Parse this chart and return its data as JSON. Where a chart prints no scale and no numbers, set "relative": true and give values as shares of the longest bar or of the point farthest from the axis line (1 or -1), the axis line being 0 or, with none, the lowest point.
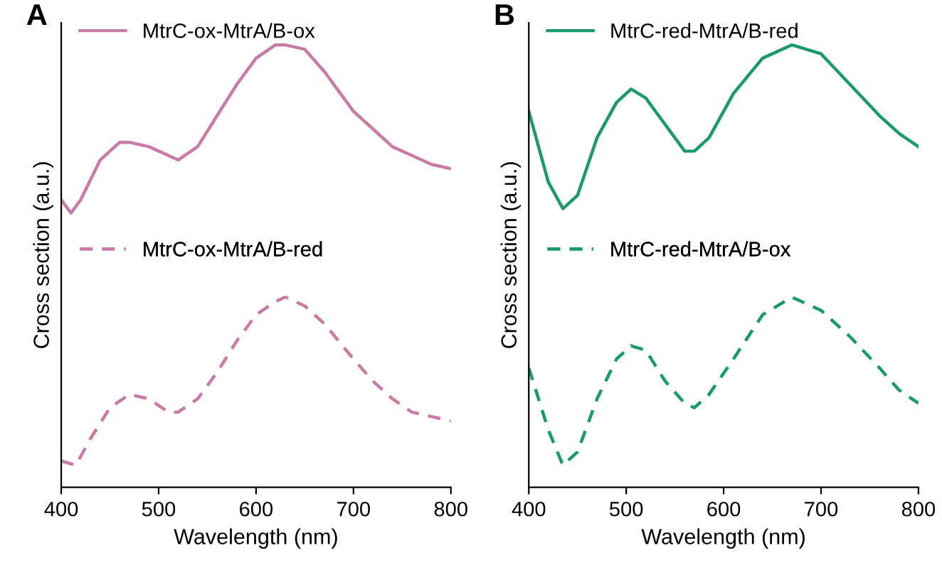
{
  "chart_data": [
    {
      "type": "line",
      "title": "A",
      "xlabel": "Wavelength (nm)",
      "ylabel": "Cross section (a.u.)",
      "relative": true,
      "xlim": [
        400,
        800
      ],
      "xticks": [
        400,
        500,
        600,
        700,
        800
      ],
      "legend": "left",
      "grid": false,
      "series": [
        {
          "name": "MtrC-ox-MtrA/B-ox",
          "color": "#c97aa5",
          "line_style": "solid",
          "x": [
            400,
            410,
            420,
            440,
            460,
            470,
            490,
            510,
            520,
            540,
            560,
            580,
            600,
            620,
            630,
            650,
            670,
            700,
            720,
            740,
            760,
            780,
            800
          ],
          "values": [
            0.65,
            0.62,
            0.65,
            0.74,
            0.78,
            0.78,
            0.77,
            0.75,
            0.74,
            0.77,
            0.84,
            0.91,
            0.97,
            1.0,
            1.0,
            0.99,
            0.94,
            0.85,
            0.81,
            0.77,
            0.75,
            0.73,
            0.72
          ]
        },
        {
          "name": "MtrC-ox-MtrA/B-red",
          "color": "#c97aa5",
          "line_style": "dashed",
          "x": [
            400,
            415,
            430,
            450,
            470,
            490,
            510,
            520,
            540,
            560,
            580,
            600,
            620,
            630,
            650,
            670,
            700,
            720,
            740,
            760,
            780,
            800
          ],
          "values": [
            0.06,
            0.05,
            0.11,
            0.18,
            0.21,
            0.2,
            0.17,
            0.17,
            0.2,
            0.26,
            0.33,
            0.39,
            0.42,
            0.43,
            0.41,
            0.37,
            0.29,
            0.24,
            0.2,
            0.17,
            0.16,
            0.15
          ]
        }
      ]
    },
    {
      "type": "line",
      "title": "B",
      "xlabel": "Wavelength (nm)",
      "ylabel": "Cross section (a.u.)",
      "relative": true,
      "xlim": [
        400,
        800
      ],
      "xticks": [
        400,
        500,
        600,
        700,
        800
      ],
      "legend": "left",
      "grid": false,
      "series": [
        {
          "name": "MtrC-red-MtrA/B-red",
          "color": "#1a9a6c",
          "line_style": "solid",
          "x": [
            400,
            420,
            435,
            450,
            470,
            490,
            505,
            520,
            540,
            560,
            570,
            585,
            610,
            640,
            670,
            700,
            730,
            760,
            780,
            800
          ],
          "values": [
            0.85,
            0.69,
            0.63,
            0.66,
            0.79,
            0.87,
            0.9,
            0.88,
            0.82,
            0.76,
            0.76,
            0.79,
            0.89,
            0.97,
            1.0,
            0.98,
            0.91,
            0.84,
            0.8,
            0.77
          ]
        },
        {
          "name": "MtrC-red-MtrA/B-ox",
          "color": "#1a9a6c",
          "line_style": "dashed",
          "x": [
            400,
            420,
            435,
            450,
            470,
            490,
            505,
            520,
            540,
            560,
            570,
            585,
            610,
            640,
            670,
            700,
            730,
            760,
            780,
            800
          ],
          "values": [
            0.27,
            0.13,
            0.05,
            0.08,
            0.2,
            0.29,
            0.32,
            0.31,
            0.24,
            0.19,
            0.18,
            0.21,
            0.29,
            0.39,
            0.43,
            0.4,
            0.34,
            0.27,
            0.22,
            0.19
          ]
        }
      ]
    }
  ]
}
